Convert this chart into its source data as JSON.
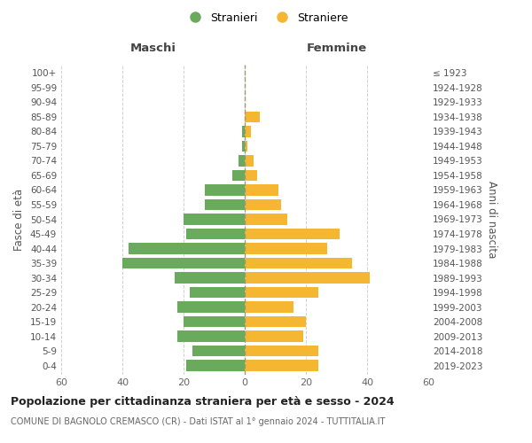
{
  "age_groups": [
    "0-4",
    "5-9",
    "10-14",
    "15-19",
    "20-24",
    "25-29",
    "30-34",
    "35-39",
    "40-44",
    "45-49",
    "50-54",
    "55-59",
    "60-64",
    "65-69",
    "70-74",
    "75-79",
    "80-84",
    "85-89",
    "90-94",
    "95-99",
    "100+"
  ],
  "birth_years": [
    "2019-2023",
    "2014-2018",
    "2009-2013",
    "2004-2008",
    "1999-2003",
    "1994-1998",
    "1989-1993",
    "1984-1988",
    "1979-1983",
    "1974-1978",
    "1969-1973",
    "1964-1968",
    "1959-1963",
    "1954-1958",
    "1949-1953",
    "1944-1948",
    "1939-1943",
    "1934-1938",
    "1929-1933",
    "1924-1928",
    "≤ 1923"
  ],
  "males": [
    19,
    17,
    22,
    20,
    22,
    18,
    23,
    40,
    38,
    19,
    20,
    13,
    13,
    4,
    2,
    1,
    1,
    0,
    0,
    0,
    0
  ],
  "females": [
    24,
    24,
    19,
    20,
    16,
    24,
    41,
    35,
    27,
    31,
    14,
    12,
    11,
    4,
    3,
    1,
    2,
    5,
    0,
    0,
    0
  ],
  "male_color": "#6aaa5c",
  "female_color": "#f5b731",
  "male_label": "Stranieri",
  "female_label": "Straniere",
  "title_maschi": "Maschi",
  "title_femmine": "Femmine",
  "ylabel_left": "Fasce di età",
  "ylabel_right": "Anni di nascita",
  "xlim": 60,
  "background_color": "#ffffff",
  "grid_color": "#cccccc",
  "main_title": "Popolazione per cittadinanza straniera per età e sesso - 2024",
  "sub_title": "COMUNE DI BAGNOLO CREMASCO (CR) - Dati ISTAT al 1° gennaio 2024 - TUTTITALIA.IT"
}
